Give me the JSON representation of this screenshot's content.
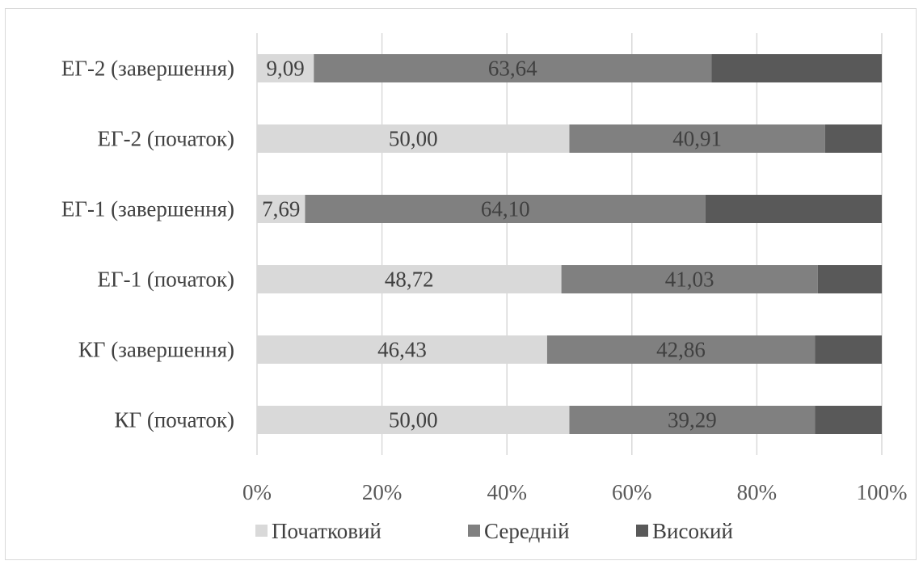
{
  "chart_data": {
    "type": "bar",
    "orientation": "horizontal",
    "stacked": "percent",
    "categories": [
      "КГ (початок)",
      "КГ (завершення)",
      "ЕГ-1 (початок)",
      "ЕГ-1 (завершення)",
      "ЕГ-2 (початок)",
      "ЕГ-2 (завершення)"
    ],
    "series": [
      {
        "name": "Початковий",
        "values": [
          50.0,
          46.43,
          48.72,
          7.69,
          50.0,
          9.09
        ],
        "labels": [
          "50,00",
          "46,43",
          "48,72",
          "7,69",
          "50,00",
          "9,09"
        ],
        "color": "#d9d9d9"
      },
      {
        "name": "Середній",
        "values": [
          39.29,
          42.86,
          41.03,
          64.1,
          40.91,
          63.64
        ],
        "labels": [
          "39,29",
          "42,86",
          "41,03",
          "64,10",
          "40,91",
          "63,64"
        ],
        "color": "#808080"
      },
      {
        "name": "Високий",
        "values": [
          10.71,
          10.71,
          10.26,
          28.21,
          9.09,
          27.27
        ],
        "labels": [
          "",
          "",
          "",
          "",
          "",
          ""
        ],
        "color": "#595959"
      }
    ],
    "x_ticks": [
      "0%",
      "20%",
      "40%",
      "60%",
      "80%",
      "100%"
    ],
    "xlim": [
      0,
      100
    ],
    "grid": true,
    "legend": "bottom"
  }
}
